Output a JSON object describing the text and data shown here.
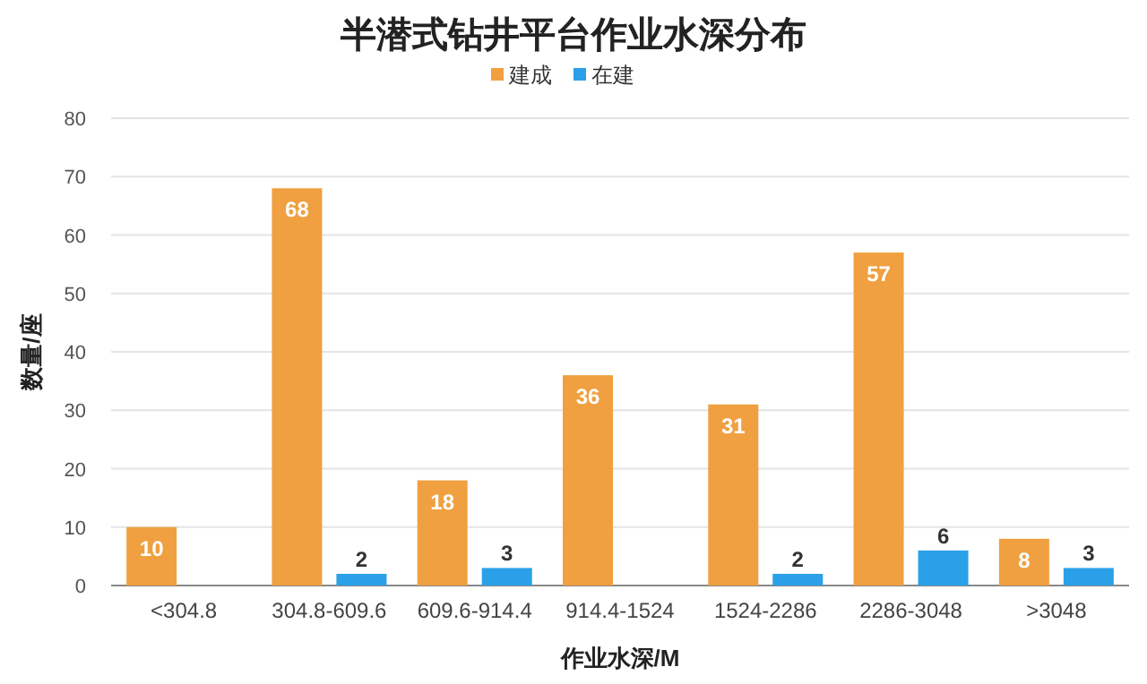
{
  "chart_data": {
    "type": "bar",
    "title": "半潜式钻井平台作业水深分布",
    "xlabel": "作业水深/M",
    "ylabel": "数量/座",
    "categories": [
      "<304.8",
      "304.8-609.6",
      "609.6-914.4",
      "914.4-1524",
      "1524-2286",
      "2286-3048",
      ">3048"
    ],
    "series": [
      {
        "name": "建成",
        "color": "#f0a040",
        "values": [
          10,
          68,
          18,
          36,
          31,
          57,
          8
        ]
      },
      {
        "name": "在建",
        "color": "#2aa0e8",
        "values": [
          null,
          2,
          3,
          null,
          2,
          6,
          3
        ]
      }
    ],
    "ylim": [
      0,
      80
    ],
    "yticks": [
      0,
      10,
      20,
      30,
      40,
      50,
      60,
      70,
      80
    ],
    "grid": "y",
    "legend": "top",
    "data_labels": true
  }
}
